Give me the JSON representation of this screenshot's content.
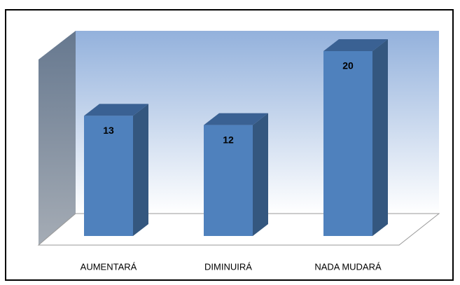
{
  "chart_data": {
    "type": "bar3d",
    "categories": [
      "AUMENTARÁ",
      "DIMINUIRÁ",
      "NADA MUDARÁ"
    ],
    "values": [
      13,
      12,
      20
    ],
    "color": "#4f81bd"
  }
}
